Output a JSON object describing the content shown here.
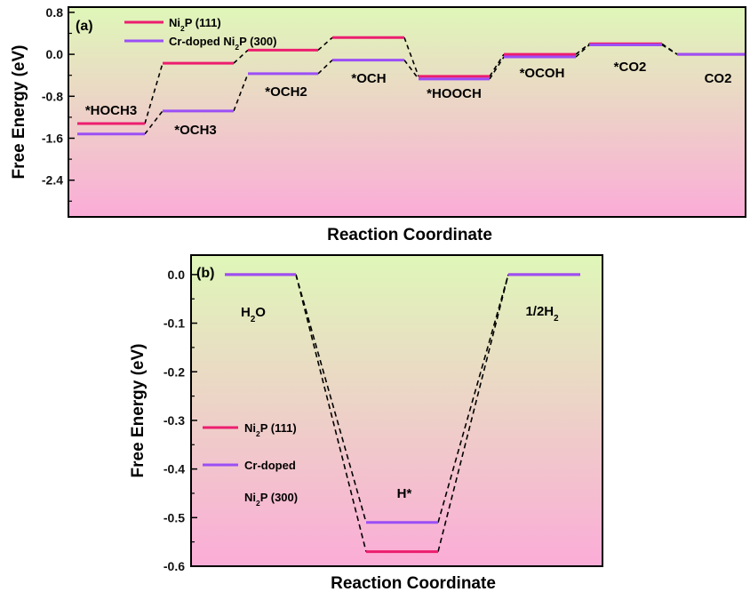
{
  "chart_data": [
    {
      "type": "line",
      "panel_label": "(a)",
      "xlabel": "Reaction Coordinate",
      "ylabel": "Free Energy  (eV)",
      "ylim": [
        -3.1,
        0.9
      ],
      "yticks": [
        "0.8",
        "0.0",
        "-0.8",
        "-1.6",
        "-2.4"
      ],
      "categories": [
        "*HOCH3",
        "*OCH3",
        "*OCH2",
        "*OCH",
        "*HOOCH",
        "*OCOH",
        "*CO2",
        "CO2"
      ],
      "series": [
        {
          "name_main": "Ni",
          "name_sub": "2",
          "name_rest": "P (111)",
          "color": "#ec1e6e",
          "values": [
            -1.32,
            -0.17,
            0.08,
            0.32,
            -0.42,
            0.0,
            0.2,
            0.0
          ]
        },
        {
          "name_main": "Cr-doped Ni",
          "name_sub": "2",
          "name_rest": "P (300)",
          "color": "#9b4ff5",
          "values": [
            -1.52,
            -1.08,
            -0.37,
            -0.11,
            -0.47,
            -0.05,
            0.18,
            0.0
          ]
        }
      ]
    },
    {
      "type": "line",
      "panel_label": "(b)",
      "xlabel": "Reaction Coordinate",
      "ylabel": "Free Energy  (eV)",
      "ylim": [
        -0.6,
        0.04
      ],
      "yticks": [
        "0.0",
        "-0.1",
        "-0.2",
        "-0.3",
        "-0.4",
        "-0.5",
        "-0.6"
      ],
      "state_labels": [
        {
          "main": "H",
          "sub": "2",
          "rest": "O"
        },
        {
          "main": "H*",
          "sub": "",
          "rest": ""
        },
        {
          "main": "1/2H",
          "sub": "2",
          "rest": ""
        }
      ],
      "series": [
        {
          "legend_lines": [
            {
              "main": "Ni",
              "sub": "2",
              "rest": "P (111)"
            }
          ],
          "color": "#ec1e6e",
          "values": [
            0.0,
            -0.57,
            0.0
          ]
        },
        {
          "legend_lines": [
            {
              "main": "Cr-doped",
              "sub": "",
              "rest": ""
            },
            {
              "main": "Ni",
              "sub": "2",
              "rest": "P (300)"
            }
          ],
          "color": "#9b4ff5",
          "values": [
            0.0,
            -0.51,
            0.0
          ]
        }
      ]
    }
  ]
}
